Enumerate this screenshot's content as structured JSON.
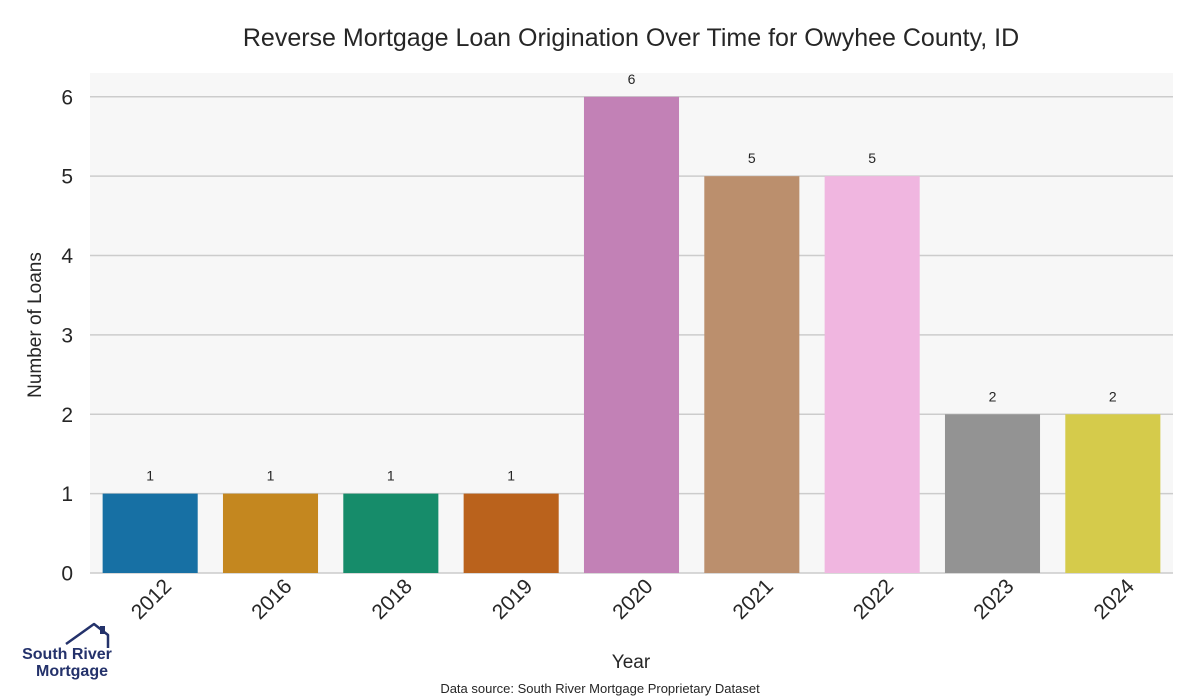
{
  "chart_data": {
    "type": "bar",
    "title": "Reverse Mortgage Loan Origination Over Time for Owyhee County, ID",
    "xlabel": "Year",
    "ylabel": "Number of Loans",
    "categories": [
      "2012",
      "2016",
      "2018",
      "2019",
      "2020",
      "2021",
      "2022",
      "2023",
      "2024"
    ],
    "values": [
      1,
      1,
      1,
      1,
      6,
      5,
      5,
      2,
      2
    ],
    "ylim": [
      0,
      6.3
    ],
    "yticks": [
      0,
      1,
      2,
      3,
      4,
      5,
      6
    ],
    "colors": [
      "#1770a4",
      "#c4871f",
      "#168c6a",
      "#ba621c",
      "#c281b6",
      "#bb8f6d",
      "#f0b6e0",
      "#939393",
      "#d5cb4b"
    ],
    "grid": true,
    "legend": "none",
    "data_labels": true
  },
  "footer": {
    "source": "Data source: South River Mortgage Proprietary Dataset"
  },
  "logo": {
    "line1": "South River",
    "line2": "Mortgage",
    "icon": "house-roof-icon"
  }
}
